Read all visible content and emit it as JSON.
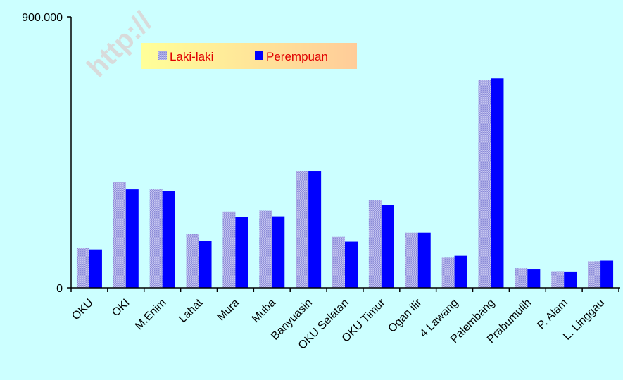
{
  "watermark": "http://",
  "chart_data": {
    "type": "bar",
    "categories": [
      "OKU",
      "OKI",
      "M.Enim",
      "Lahat",
      "Mura",
      "Muba",
      "Banyuasin",
      "OKU Selatan",
      "OKU Timur",
      "Ogan ilir",
      "4 Lawang",
      "Palembang",
      "Prabumulih",
      "P. Alam",
      "L. Linggau"
    ],
    "series": [
      {
        "name": "Laki-laki",
        "values": [
          132000,
          351000,
          327000,
          178000,
          253000,
          256000,
          388000,
          169000,
          292000,
          183000,
          102000,
          690000,
          65000,
          55000,
          88000
        ]
      },
      {
        "name": "Perempuan",
        "values": [
          127000,
          327000,
          322000,
          156000,
          235000,
          237000,
          388000,
          153000,
          275000,
          183000,
          106000,
          696000,
          63000,
          54000,
          90000
        ]
      }
    ],
    "yticks": [
      "0",
      "900.000"
    ],
    "ylim": [
      0,
      900000
    ],
    "legend": {
      "placement": "top-left",
      "entries": [
        "Laki-laki",
        "Perempuan"
      ]
    },
    "colors": {
      "plot_bg": "#ccffff",
      "laki": "#9a9ae6",
      "perempuan": "#0000ff",
      "legend_bg_start": "#ffff99",
      "legend_bg_end": "#ffcc99",
      "legend_text": "#e00000"
    },
    "grid": false
  }
}
